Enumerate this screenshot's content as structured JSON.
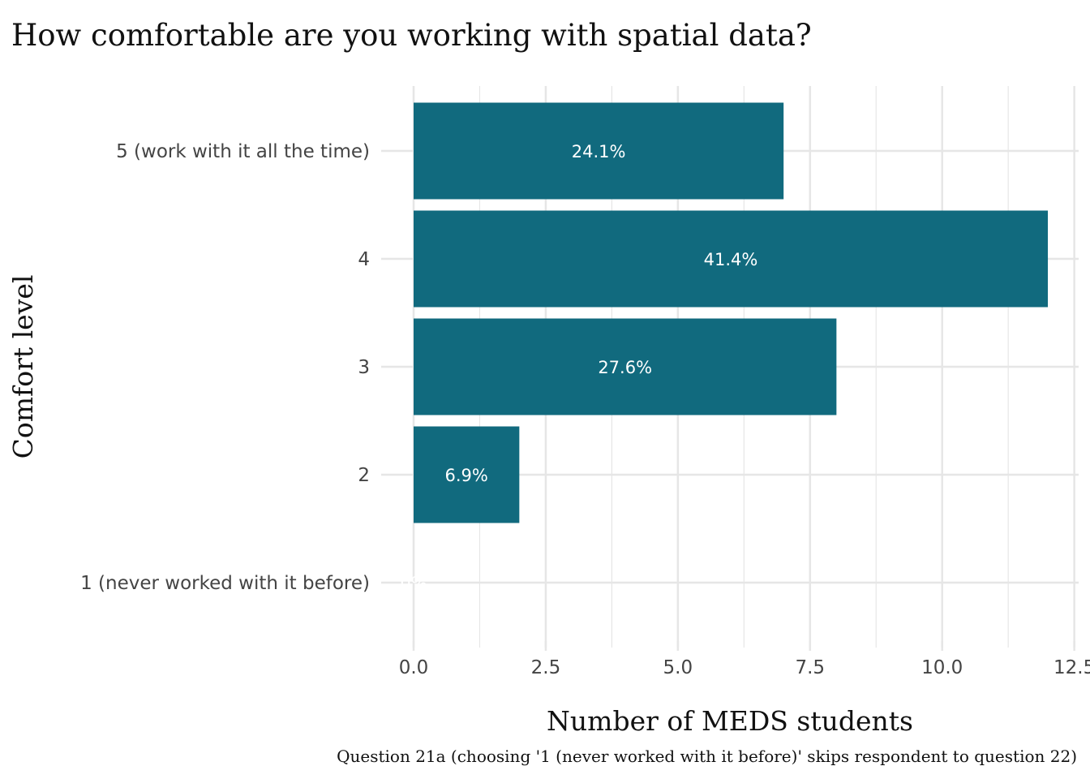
{
  "chart_data": {
    "type": "bar",
    "orientation": "horizontal",
    "title": "How comfortable are you working with spatial data?",
    "xlabel": "Number of MEDS students",
    "ylabel": "Comfort level",
    "caption": "Question 21a (choosing '1 (never worked with it before)' skips respondent to question 22)",
    "categories": [
      "5 (work with it all the time)",
      "4",
      "3",
      "2",
      "1 (never worked with it before)"
    ],
    "values": [
      7,
      12,
      8,
      2,
      0
    ],
    "data_labels": [
      "24.1%",
      "41.4%",
      "27.6%",
      "6.9%",
      "0%"
    ],
    "xlim": [
      0,
      12.5
    ],
    "x_ticks": [
      "0.0",
      "2.5",
      "5.0",
      "7.5",
      "10.0",
      "12.5"
    ],
    "grid": true,
    "bar_color": "#116A7E"
  }
}
